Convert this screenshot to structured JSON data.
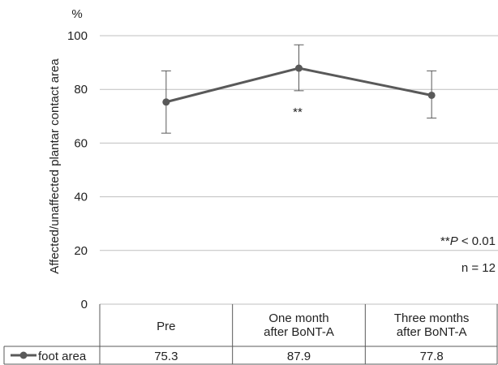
{
  "chart_data": {
    "type": "line",
    "unit_label": "%",
    "ylabel": "Affected/unaffected plantar contact area",
    "ylim": [
      0,
      100
    ],
    "yticks": [
      0,
      20,
      40,
      60,
      80,
      100
    ],
    "grid": true,
    "categories": [
      [
        "Pre"
      ],
      [
        "One month",
        "after BoNT-A"
      ],
      [
        "Three months",
        "after BoNT-A"
      ]
    ],
    "series": [
      {
        "name": "foot area",
        "values": [
          75.3,
          87.9,
          77.8
        ],
        "error_low": [
          63.7,
          79.5,
          69.3
        ],
        "error_high": [
          86.9,
          96.6,
          86.9
        ],
        "color": "#595959"
      }
    ],
    "annotations": {
      "significance_mark": "**",
      "pvalue_prefix": "**",
      "pvalue_italic": "P",
      "pvalue_suffix": " < 0.01",
      "n_label": "n = 12"
    }
  }
}
